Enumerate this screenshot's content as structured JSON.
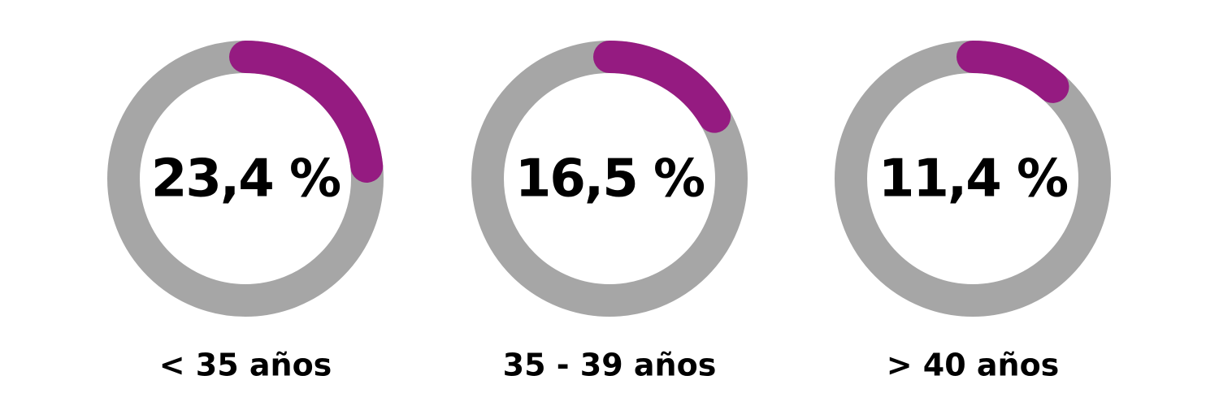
{
  "chart_data": {
    "type": "donut",
    "categories": [
      "< 35 años",
      "35 - 39 años",
      "> 40 años"
    ],
    "values": [
      23.4,
      16.5,
      11.4
    ],
    "value_labels": [
      "23,4 %",
      "16,5 %",
      "11,4 %"
    ],
    "ylim": [
      0,
      100
    ],
    "color": "#951b81",
    "track_color": "#a6a6a6"
  }
}
